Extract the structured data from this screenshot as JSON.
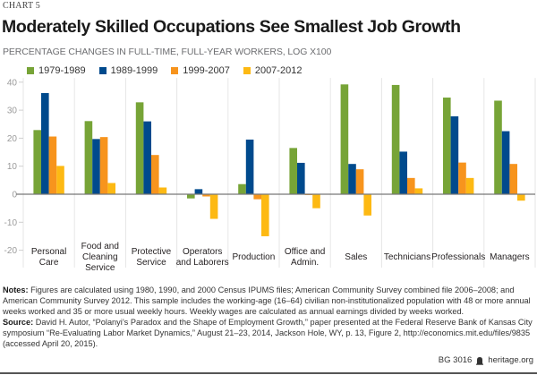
{
  "header": {
    "chart_label": "CHART 5",
    "title": "Moderately Skilled Occupations See Smallest Job Growth",
    "subtitle": "PERCENTAGE CHANGES IN FULL-TIME, FULL-YEAR WORKERS, LOG  X100"
  },
  "colors": {
    "1979-1989": "#77a437",
    "1989-1999": "#004a8d",
    "1999-2007": "#f7941d",
    "2007-2012": "#fdb913",
    "gridline": "#e6e6e6",
    "zero_line": "#777777",
    "tick_text": "#9b9b9b"
  },
  "chart_data": {
    "type": "bar",
    "title": "Moderately Skilled Occupations See Smallest Job Growth",
    "subtitle": "PERCENTAGE CHANGES IN FULL-TIME, FULL-YEAR WORKERS, LOG  X100",
    "xlabel": "",
    "ylabel": "",
    "ylim": [
      -25,
      40
    ],
    "yticks": [
      40,
      30,
      20,
      10,
      0,
      -10,
      -20
    ],
    "grid": "vertical separators between categories",
    "legend_position": "top-left",
    "categories": [
      "Personal Care",
      "Food and Cleaning Service",
      "Protective Service",
      "Operators and Laborers",
      "Production",
      "Office and Admin.",
      "Sales",
      "Technicians",
      "Professionals",
      "Managers"
    ],
    "category_label_lines": [
      [
        "Personal",
        "Care"
      ],
      [
        "Food and",
        "Cleaning",
        "Service"
      ],
      [
        "Protective",
        "Service"
      ],
      [
        "Operators",
        "and Laborers"
      ],
      [
        "Production"
      ],
      [
        "Office and",
        "Admin."
      ],
      [
        "Sales"
      ],
      [
        "Technicians"
      ],
      [
        "Professionals"
      ],
      [
        "Managers"
      ]
    ],
    "series": [
      {
        "name": "1979-1989",
        "values": [
          22.9,
          26.1,
          32.8,
          -1.5,
          3.6,
          16.5,
          39.2,
          39.0,
          34.5,
          33.4
        ]
      },
      {
        "name": "1989-1999",
        "values": [
          36.1,
          19.7,
          26.0,
          1.8,
          19.5,
          11.2,
          10.8,
          15.2,
          27.8,
          22.5
        ]
      },
      {
        "name": "1999-2007",
        "values": [
          20.6,
          20.4,
          14.0,
          -0.8,
          -1.8,
          -0.3,
          8.9,
          5.8,
          11.3,
          10.8
        ]
      },
      {
        "name": "2007-2012",
        "values": [
          10.1,
          4.0,
          2.4,
          -8.8,
          -15.0,
          -5.0,
          -7.6,
          2.1,
          5.8,
          -2.3
        ]
      }
    ]
  },
  "notes": {
    "notes_label": "Notes:",
    "notes_text": " Figures are calculated using 1980, 1990, and 2000 Census IPUMS files; American Community Survey combined file 2006–2008; and American Community Survey 2012. This sample includes the working-age (16–64) civilian non-institutionalized population with 48 or more annual weeks worked and 35 or more usual weekly hours. Weekly wages are calculated as annual earnings divided by weeks worked.",
    "source_label": "Source:",
    "source_text": " David H. Autor, “Polanyi’s Paradox and the Shape of Employment Growth,” paper presented at the Federal Reserve Bank of Kansas City symposium “Re-Evaluating Labor Market Dynamics,” August 21–23, 2014, Jackson Hole, WY, p. 13, Figure 2, http://economics.mit.edu/files/9835 (accessed April 20, 2015)."
  },
  "footer": {
    "report_id": "BG 3016",
    "logo_icon": "liberty-bell-icon",
    "site": "heritage.org"
  }
}
